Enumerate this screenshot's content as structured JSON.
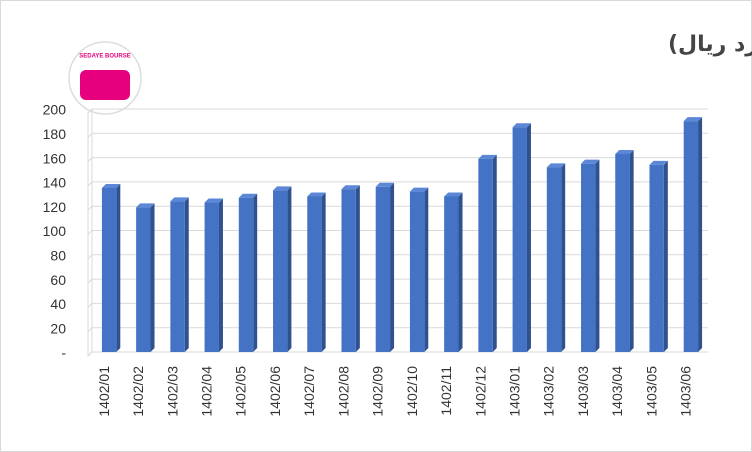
{
  "chart_data": {
    "type": "bar",
    "title": "روند درآمدهای وبملت (هزار میلیارد ریال)",
    "logo_text": "SEDAYE BOURSE",
    "categories": [
      "1402/01",
      "1402/02",
      "1402/03",
      "1402/04",
      "1402/05",
      "1402/06",
      "1402/07",
      "1402/08",
      "1402/09",
      "1402/10",
      "1402/11",
      "1402/12",
      "1403/01",
      "1403/02",
      "1403/03",
      "1403/04",
      "1403/05",
      "1403/06"
    ],
    "values": [
      135,
      119,
      124,
      123,
      127,
      133,
      128,
      134,
      136,
      132,
      128,
      159,
      185,
      152,
      155,
      163,
      154,
      190
    ],
    "color": "#4472c4",
    "ylim": [
      0,
      200
    ],
    "yticks": [
      {
        "value": 0,
        "label": "-"
      },
      20,
      40,
      60,
      80,
      100,
      120,
      140,
      160,
      180,
      200
    ],
    "grid": true
  }
}
